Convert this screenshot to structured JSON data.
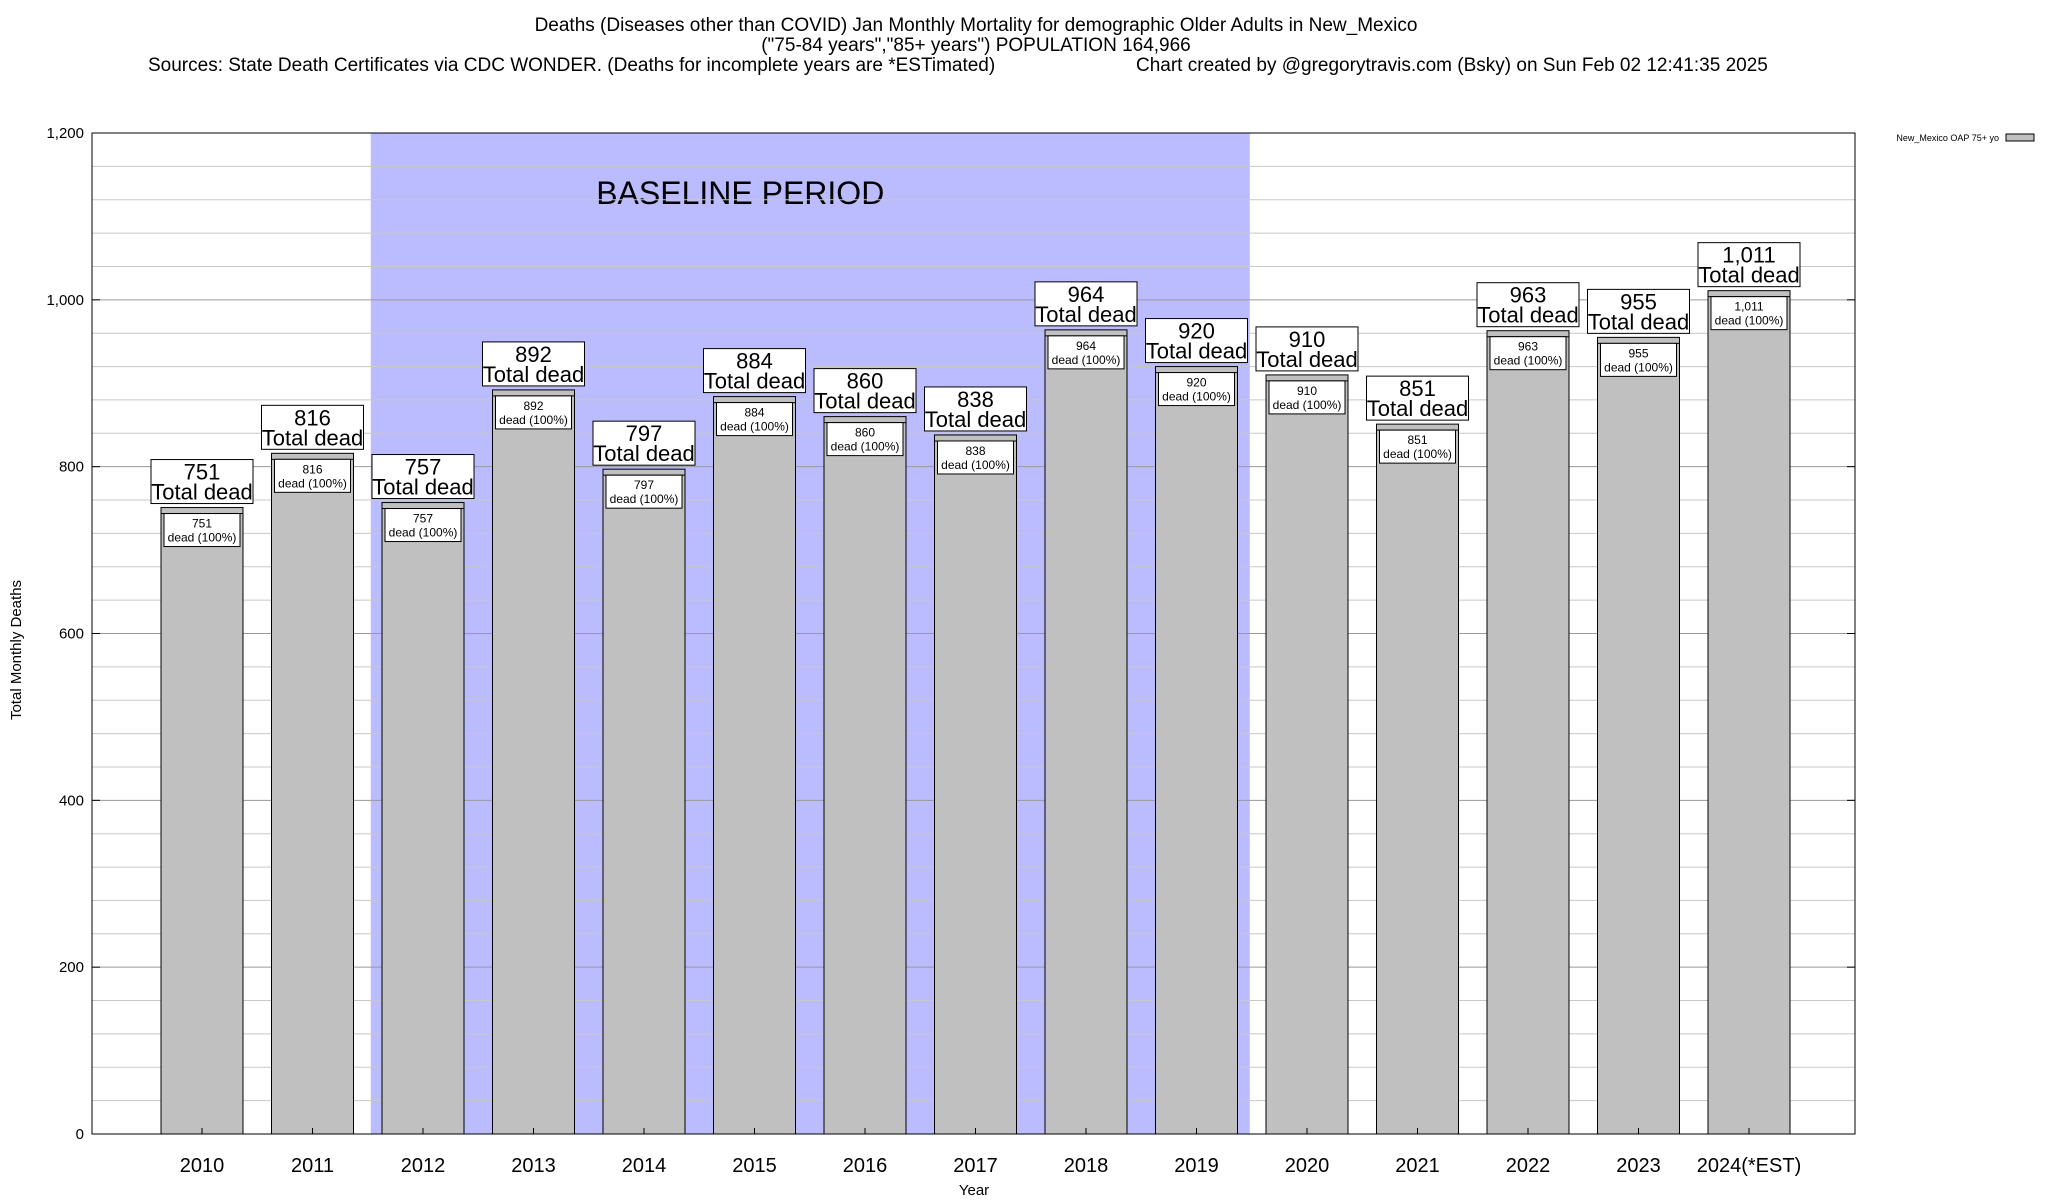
{
  "chart_data": {
    "type": "bar",
    "title_line1": "Deaths (Diseases other than COVID) Jan Monthly Mortality for demographic Older Adults in New_Mexico",
    "title_line2": "(\"75-84 years\",\"85+ years\") POPULATION 164,966",
    "title_line3_left": "Sources: State Death Certificates via CDC WONDER. (Deaths for incomplete years are *ESTimated)",
    "title_line3_right": "Chart created by @gregorytravis.com (Bsky) on Sun Feb 02 12:41:35 2025",
    "xlabel": "Year",
    "ylabel": "Total Monthly Deaths",
    "ylim": [
      0,
      1200
    ],
    "yticks": [
      0,
      200,
      400,
      600,
      800,
      1000,
      1200
    ],
    "ytick_labels": [
      "0",
      "200",
      "400",
      "600",
      "800",
      "1,000",
      "1,200"
    ],
    "grid": true,
    "legend_position": "top-right",
    "baseline_label": "BASELINE PERIOD",
    "baseline_range": [
      "2012",
      "2019"
    ],
    "baseline_color": "#bbbbff",
    "bar_color": "#c0c0c0",
    "categories": [
      "2010",
      "2011",
      "2012",
      "2013",
      "2014",
      "2015",
      "2016",
      "2017",
      "2018",
      "2019",
      "2020",
      "2021",
      "2022",
      "2023",
      "2024(*EST)"
    ],
    "series": [
      {
        "name": "New_Mexico OAP 75+ yo",
        "values": [
          751,
          816,
          757,
          892,
          797,
          884,
          860,
          838,
          964,
          920,
          910,
          851,
          963,
          955,
          1011
        ],
        "top_labels": [
          "751",
          "816",
          "757",
          "892",
          "797",
          "884",
          "860",
          "838",
          "964",
          "920",
          "910",
          "851",
          "963",
          "955",
          "1,011"
        ],
        "top_sublabel": "Total dead",
        "inner_labels": [
          "751",
          "816",
          "757",
          "892",
          "797",
          "884",
          "860",
          "838",
          "964",
          "920",
          "910",
          "851",
          "963",
          "955",
          "1,011"
        ],
        "inner_sublabel": "dead (100%)"
      }
    ]
  }
}
